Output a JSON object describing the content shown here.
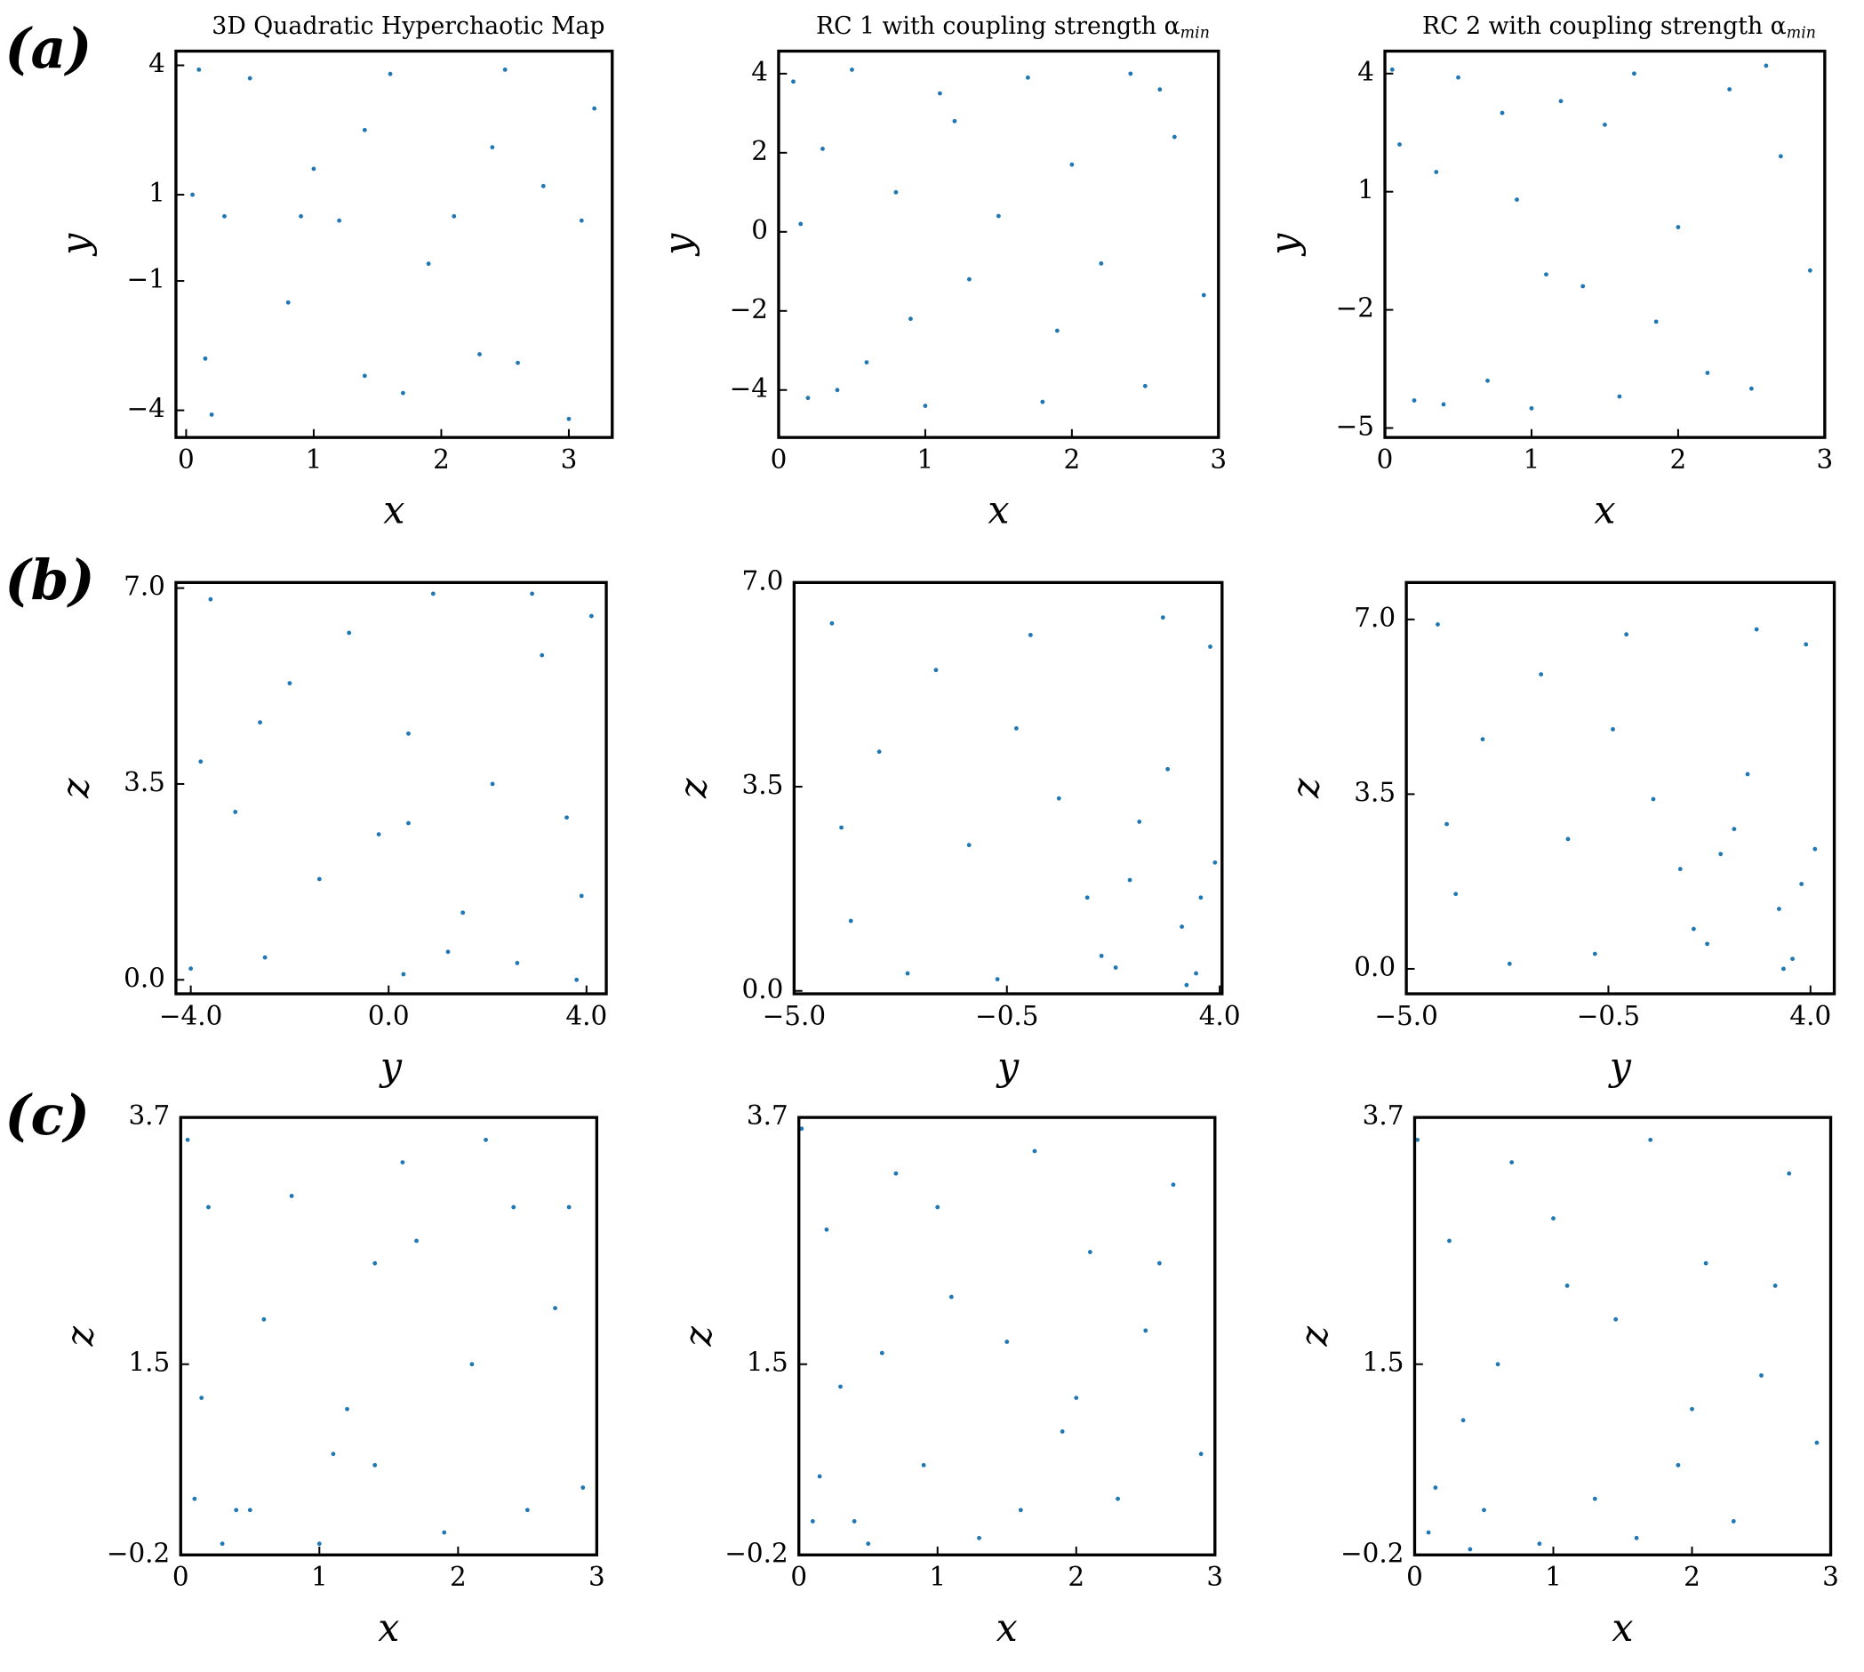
{
  "chart_data": [
    {
      "type": "scatter",
      "panel_label": "(a)",
      "title": "3D Quadratic Hyperchaotic Map",
      "x_label": "x",
      "y_label": "y",
      "color": "#1f77b4",
      "xlim": [
        -0.08,
        3.34
      ],
      "ylim": [
        -4.63,
        4.33
      ],
      "xticks": [
        0,
        1,
        2,
        3
      ],
      "yticks": [
        {
          "value": -4,
          "label": "−4"
        },
        {
          "value": -1,
          "label": "−1"
        },
        1,
        4
      ],
      "x": [
        0.1,
        0.15,
        0.3,
        0.5,
        0.8,
        1.0,
        1.2,
        1.4,
        1.4,
        1.6,
        1.9,
        2.1,
        2.3,
        2.5,
        2.6,
        2.8,
        3.0,
        3.2,
        0.2,
        0.9,
        1.7,
        2.4,
        0.05,
        3.1
      ],
      "y": [
        3.9,
        -2.8,
        0.5,
        3.7,
        -1.5,
        1.6,
        0.4,
        -3.2,
        2.5,
        3.8,
        -0.6,
        0.5,
        -2.7,
        3.9,
        -2.9,
        1.2,
        -4.2,
        3.0,
        -4.1,
        0.5,
        -3.6,
        2.1,
        1.0,
        0.4
      ]
    },
    {
      "type": "scatter",
      "title": "RC 1 with coupling strength α",
      "title_subscript": "min",
      "x_label": "x",
      "y_label": "y",
      "color": "#1f77b4",
      "xlim": [
        0,
        3
      ],
      "ylim": [
        -5.2,
        4.57
      ],
      "xticks": [
        0,
        1,
        2,
        3
      ],
      "yticks": [
        {
          "value": -4,
          "label": "−4"
        },
        {
          "value": -2,
          "label": "−2"
        },
        0,
        2,
        4
      ],
      "x": [
        0.1,
        0.2,
        0.3,
        0.5,
        0.6,
        0.8,
        1.0,
        1.1,
        1.3,
        1.5,
        1.7,
        1.9,
        2.0,
        2.2,
        2.4,
        2.5,
        2.7,
        2.9,
        0.4,
        1.2,
        0.15,
        2.6,
        1.8,
        0.9
      ],
      "y": [
        3.8,
        -4.2,
        2.1,
        4.1,
        -3.3,
        1.0,
        -4.4,
        3.5,
        -1.2,
        0.4,
        3.9,
        -2.5,
        1.7,
        -0.8,
        4.0,
        -3.9,
        2.4,
        -1.6,
        -4.0,
        2.8,
        0.2,
        3.6,
        -4.3,
        -2.2
      ]
    },
    {
      "type": "scatter",
      "title": "RC 2 with coupling strength α",
      "title_subscript": "min",
      "x_label": "x",
      "y_label": "y",
      "color": "#1f77b4",
      "xlim": [
        0,
        3
      ],
      "ylim": [
        -5.24,
        4.57
      ],
      "xticks": [
        0,
        1,
        2,
        3
      ],
      "yticks": [
        {
          "value": -5,
          "label": "−5"
        },
        {
          "value": -2,
          "label": "−2"
        },
        1,
        4
      ],
      "x": [
        0.05,
        0.2,
        0.35,
        0.5,
        0.7,
        0.9,
        1.0,
        1.2,
        1.35,
        1.5,
        1.7,
        1.85,
        2.0,
        2.2,
        2.35,
        2.5,
        2.7,
        2.9,
        0.4,
        1.1,
        0.1,
        2.6,
        1.6,
        0.8
      ],
      "y": [
        4.1,
        -4.3,
        1.5,
        3.9,
        -3.8,
        0.8,
        -4.5,
        3.3,
        -1.4,
        2.7,
        4.0,
        -2.3,
        0.1,
        -3.6,
        3.6,
        -4.0,
        1.9,
        -1.0,
        -4.4,
        -1.1,
        2.2,
        4.2,
        -4.2,
        3.0
      ]
    },
    {
      "type": "scatter",
      "panel_label": "(b)",
      "x_label": "y",
      "y_label": "z",
      "color": "#1f77b4",
      "xlim": [
        -4.3,
        4.4
      ],
      "ylim": [
        -0.25,
        7.1
      ],
      "xticks": [
        {
          "value": -4,
          "label": "−4.0"
        },
        {
          "value": 0,
          "label": "0.0"
        },
        {
          "value": 4,
          "label": "4.0"
        }
      ],
      "yticks": [
        {
          "value": 0,
          "label": "0.0"
        },
        3.5,
        {
          "value": 7,
          "label": "7.0"
        }
      ],
      "x": [
        -4.0,
        -3.6,
        -3.1,
        -2.5,
        -2.0,
        -1.4,
        -0.8,
        -0.2,
        0.3,
        0.4,
        0.9,
        1.5,
        2.1,
        2.6,
        3.1,
        3.6,
        3.8,
        4.1,
        -2.6,
        0.4,
        3.9,
        -3.8,
        1.2,
        2.9
      ],
      "y": [
        0.2,
        6.8,
        3.0,
        0.4,
        5.3,
        1.8,
        6.2,
        2.6,
        0.1,
        4.4,
        6.9,
        1.2,
        3.5,
        0.3,
        5.8,
        2.9,
        0.0,
        6.5,
        4.6,
        2.8,
        1.5,
        3.9,
        0.5,
        6.9
      ]
    },
    {
      "type": "scatter",
      "x_label": "y",
      "y_label": "z",
      "color": "#1f77b4",
      "xlim": [
        -5,
        4.05
      ],
      "ylim": [
        -0.05,
        7.0
      ],
      "xticks": [
        {
          "value": -5,
          "label": "−5.0"
        },
        {
          "value": -0.5,
          "label": "−0.5"
        },
        {
          "value": 4,
          "label": "4.0"
        }
      ],
      "yticks": [
        {
          "value": 0,
          "label": "0.0"
        },
        3.5,
        {
          "value": 7,
          "label": "7.0"
        }
      ],
      "x": [
        -4.2,
        -3.8,
        -3.2,
        -2.6,
        -2.0,
        -1.3,
        -0.7,
        0.0,
        0.6,
        1.2,
        1.8,
        2.3,
        2.8,
        3.2,
        3.5,
        3.8,
        3.9,
        -4.0,
        1.5,
        2.9,
        3.6,
        -0.3,
        2.1,
        3.3
      ],
      "y": [
        6.3,
        1.2,
        4.1,
        0.3,
        5.5,
        2.5,
        0.2,
        6.1,
        3.3,
        1.6,
        0.4,
        2.9,
        6.4,
        1.1,
        0.3,
        5.9,
        2.2,
        2.8,
        0.6,
        3.8,
        1.6,
        4.5,
        1.9,
        0.1
      ]
    },
    {
      "type": "scatter",
      "x_label": "y",
      "y_label": "z",
      "color": "#1f77b4",
      "xlim": [
        -5,
        4.53
      ],
      "ylim": [
        -0.5,
        7.74
      ],
      "xticks": [
        {
          "value": -5,
          "label": "−5.0"
        },
        {
          "value": -0.5,
          "label": "−0.5"
        },
        {
          "value": 4,
          "label": "4.0"
        }
      ],
      "yticks": [
        {
          "value": 0,
          "label": "0.0"
        },
        3.5,
        {
          "value": 7,
          "label": "7.0"
        }
      ],
      "x": [
        -4.3,
        -3.9,
        -3.3,
        -2.7,
        -2.0,
        -1.4,
        -0.8,
        -0.1,
        0.5,
        1.1,
        1.7,
        2.3,
        2.8,
        3.3,
        3.6,
        3.9,
        4.1,
        -4.1,
        1.4,
        2.6,
        3.8,
        -0.4,
        2.0,
        3.4
      ],
      "y": [
        6.9,
        1.5,
        4.6,
        0.1,
        5.9,
        2.6,
        0.3,
        6.7,
        3.4,
        2.0,
        0.5,
        2.8,
        6.8,
        1.2,
        0.2,
        6.5,
        2.4,
        2.9,
        0.8,
        3.9,
        1.7,
        4.8,
        2.3,
        0.0
      ]
    },
    {
      "type": "scatter",
      "panel_label": "(c)",
      "x_label": "x",
      "y_label": "z",
      "color": "#1f77b4",
      "xlim": [
        0,
        3
      ],
      "ylim": [
        -0.2,
        3.7
      ],
      "xticks": [
        0,
        1,
        2,
        3
      ],
      "yticks": [
        {
          "value": -0.2,
          "label": "−0.2"
        },
        1.5,
        3.7
      ],
      "x": [
        0.05,
        0.1,
        0.2,
        0.4,
        0.6,
        0.8,
        1.0,
        1.2,
        1.4,
        1.4,
        1.6,
        1.9,
        2.1,
        2.4,
        2.5,
        2.7,
        2.9,
        0.3,
        1.1,
        2.2,
        0.15,
        2.8,
        1.7,
        0.5
      ],
      "y": [
        3.5,
        0.3,
        2.9,
        0.2,
        1.9,
        3.0,
        -0.1,
        1.1,
        2.4,
        0.6,
        3.3,
        0.0,
        1.5,
        2.9,
        0.2,
        2.0,
        0.4,
        -0.1,
        0.7,
        3.5,
        1.2,
        2.9,
        2.6,
        0.2
      ]
    },
    {
      "type": "scatter",
      "x_label": "x",
      "y_label": "z",
      "color": "#1f77b4",
      "xlim": [
        0,
        3
      ],
      "ylim": [
        -0.2,
        3.7
      ],
      "xticks": [
        0,
        1,
        2,
        3
      ],
      "yticks": [
        {
          "value": -0.2,
          "label": "−0.2"
        },
        1.5,
        3.7
      ],
      "x": [
        0.02,
        0.1,
        0.2,
        0.3,
        0.5,
        0.7,
        0.9,
        1.1,
        1.3,
        1.5,
        1.7,
        1.9,
        2.1,
        2.3,
        2.5,
        2.7,
        2.9,
        0.4,
        1.0,
        2.0,
        0.15,
        2.6,
        1.6,
        0.6
      ],
      "y": [
        3.6,
        0.1,
        2.7,
        1.3,
        -0.1,
        3.2,
        0.6,
        2.1,
        -0.05,
        1.7,
        3.4,
        0.9,
        2.5,
        0.3,
        1.8,
        3.1,
        0.7,
        0.1,
        2.9,
        1.2,
        0.5,
        2.4,
        0.2,
        1.6
      ]
    },
    {
      "type": "scatter",
      "x_label": "x",
      "y_label": "z",
      "color": "#1f77b4",
      "xlim": [
        0,
        3
      ],
      "ylim": [
        -0.2,
        3.7
      ],
      "xticks": [
        0,
        1,
        2,
        3
      ],
      "yticks": [
        {
          "value": -0.2,
          "label": "−0.2"
        },
        1.5,
        3.7
      ],
      "x": [
        0.02,
        0.1,
        0.25,
        0.35,
        0.5,
        0.7,
        0.9,
        1.1,
        1.3,
        1.45,
        1.7,
        1.9,
        2.1,
        2.3,
        2.5,
        2.7,
        2.9,
        0.4,
        1.0,
        2.0,
        0.15,
        2.6,
        1.6,
        0.6
      ],
      "y": [
        3.5,
        0.0,
        2.6,
        1.0,
        0.2,
        3.3,
        -0.1,
        2.2,
        0.3,
        1.9,
        3.5,
        0.6,
        2.4,
        0.1,
        1.4,
        3.2,
        0.8,
        -0.15,
        2.8,
        1.1,
        0.4,
        2.2,
        -0.05,
        1.5
      ]
    }
  ]
}
